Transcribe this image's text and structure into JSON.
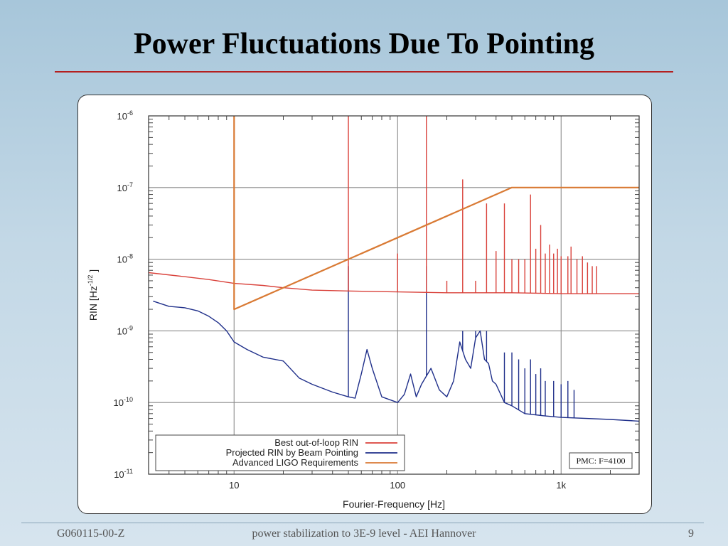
{
  "slide": {
    "title": "Power Fluctuations Due To Pointing",
    "footer_left": "G060115-00-Z",
    "footer_center": "power stabilization to 3E-9 level  - AEI Hannover",
    "page_number": "9"
  },
  "colors": {
    "title_rule": "#b41f1f",
    "best_rin": "#d9413a",
    "projected_rin": "#1f2f8a",
    "requirements": "#d97a34",
    "grid": "#8a8a8a"
  },
  "chart_data": {
    "type": "line",
    "scale": "log-log",
    "xlabel": "Fourier-Frequency [Hz]",
    "ylabel": "RIN [Hz",
    "ylabel_exponent": "-1/2",
    "ylabel_suffix": "]",
    "xlim": [
      3,
      3000
    ],
    "ylim": [
      1e-11,
      1e-06
    ],
    "x_ticks": [
      {
        "value": 10,
        "label": "10"
      },
      {
        "value": 100,
        "label": "100"
      },
      {
        "value": 1000,
        "label": "1k"
      }
    ],
    "y_ticks": [
      {
        "value": 1e-06,
        "base": "10",
        "exp": "-6"
      },
      {
        "value": 1e-07,
        "base": "10",
        "exp": "-7"
      },
      {
        "value": 1e-08,
        "base": "10",
        "exp": "-8"
      },
      {
        "value": 1e-09,
        "base": "10",
        "exp": "-9"
      },
      {
        "value": 1e-10,
        "base": "10",
        "exp": "-10"
      },
      {
        "value": 1e-11,
        "base": "10",
        "exp": "-11"
      }
    ],
    "grid": true,
    "legend_position": "bottom-left",
    "annotation": "PMC: F=4100",
    "series": [
      {
        "name": "Best out-of-loop RIN",
        "color": "#d9413a",
        "points": [
          [
            3,
            6.5e-09
          ],
          [
            5,
            5.7e-09
          ],
          [
            7,
            5.2e-09
          ],
          [
            10,
            4.6e-09
          ],
          [
            15,
            4.3e-09
          ],
          [
            20,
            4e-09
          ],
          [
            30,
            3.7e-09
          ],
          [
            50,
            3.6e-09
          ],
          [
            100,
            3.5e-09
          ],
          [
            200,
            3.4e-09
          ],
          [
            500,
            3.4e-09
          ],
          [
            1000,
            3.3e-09
          ],
          [
            2000,
            3.3e-09
          ],
          [
            3000,
            3.3e-09
          ]
        ],
        "spikes": [
          [
            50,
            1e-06
          ],
          [
            100,
            1.2e-08
          ],
          [
            150,
            1e-06
          ],
          [
            200,
            5e-09
          ],
          [
            250,
            1.3e-07
          ],
          [
            300,
            5e-09
          ],
          [
            350,
            6e-08
          ],
          [
            400,
            1.3e-08
          ],
          [
            450,
            6e-08
          ],
          [
            500,
            1e-08
          ],
          [
            550,
            1e-08
          ],
          [
            600,
            1e-08
          ],
          [
            650,
            8e-08
          ],
          [
            700,
            1.4e-08
          ],
          [
            750,
            3e-08
          ],
          [
            800,
            1.2e-08
          ],
          [
            850,
            1.6e-08
          ],
          [
            900,
            1.2e-08
          ],
          [
            950,
            1.4e-08
          ],
          [
            1000,
            1.1e-08
          ],
          [
            1100,
            1.1e-08
          ],
          [
            1150,
            1.5e-08
          ],
          [
            1250,
            1e-08
          ],
          [
            1350,
            1.1e-08
          ],
          [
            1450,
            9e-09
          ],
          [
            1550,
            8e-09
          ],
          [
            1650,
            8e-09
          ]
        ]
      },
      {
        "name": "Projected RIN by Beam Pointing",
        "color": "#1f2f8a",
        "points": [
          [
            3.2,
            2.6e-09
          ],
          [
            4,
            2.2e-09
          ],
          [
            5,
            2.1e-09
          ],
          [
            6,
            1.9e-09
          ],
          [
            7,
            1.6e-09
          ],
          [
            8,
            1.3e-09
          ],
          [
            9,
            1e-09
          ],
          [
            10,
            7e-10
          ],
          [
            12,
            5.5e-10
          ],
          [
            15,
            4.3e-10
          ],
          [
            20,
            3.8e-10
          ],
          [
            25,
            2.2e-10
          ],
          [
            30,
            1.8e-10
          ],
          [
            40,
            1.4e-10
          ],
          [
            50,
            1.2e-10
          ],
          [
            55,
            1.15e-10
          ],
          [
            60,
            2.5e-10
          ],
          [
            65,
            5.5e-10
          ],
          [
            70,
            3e-10
          ],
          [
            80,
            1.2e-10
          ],
          [
            100,
            1e-10
          ],
          [
            110,
            1.3e-10
          ],
          [
            120,
            2.5e-10
          ],
          [
            130,
            1.2e-10
          ],
          [
            140,
            1.8e-10
          ],
          [
            160,
            3e-10
          ],
          [
            180,
            1.5e-10
          ],
          [
            200,
            1.2e-10
          ],
          [
            220,
            2e-10
          ],
          [
            240,
            7e-10
          ],
          [
            260,
            4e-10
          ],
          [
            280,
            3e-10
          ],
          [
            300,
            8e-10
          ],
          [
            320,
            1e-09
          ],
          [
            340,
            4e-10
          ],
          [
            360,
            3.5e-10
          ],
          [
            380,
            2e-10
          ],
          [
            400,
            1.8e-10
          ],
          [
            450,
            1e-10
          ],
          [
            500,
            9e-11
          ],
          [
            600,
            7e-11
          ],
          [
            800,
            6.5e-11
          ],
          [
            1000,
            6.2e-11
          ],
          [
            2000,
            5.8e-11
          ],
          [
            3000,
            5.5e-11
          ]
        ],
        "spikes": [
          [
            50,
            8e-09
          ],
          [
            150,
            8e-09
          ],
          [
            250,
            1e-09
          ],
          [
            300,
            1e-09
          ],
          [
            350,
            1e-09
          ],
          [
            450,
            5e-10
          ],
          [
            500,
            5e-10
          ],
          [
            550,
            4e-10
          ],
          [
            600,
            3e-10
          ],
          [
            650,
            4e-10
          ],
          [
            700,
            2.5e-10
          ],
          [
            750,
            3e-10
          ],
          [
            800,
            2e-10
          ],
          [
            900,
            2e-10
          ],
          [
            1000,
            1.8e-10
          ],
          [
            1100,
            2e-10
          ],
          [
            1200,
            1.5e-10
          ]
        ]
      },
      {
        "name": "Advanced LIGO Requirements",
        "color": "#d97a34",
        "points": [
          [
            10,
            1e-06
          ],
          [
            10,
            2e-09
          ],
          [
            500,
            1e-07
          ],
          [
            3000,
            1e-07
          ]
        ],
        "spikes": []
      }
    ]
  }
}
